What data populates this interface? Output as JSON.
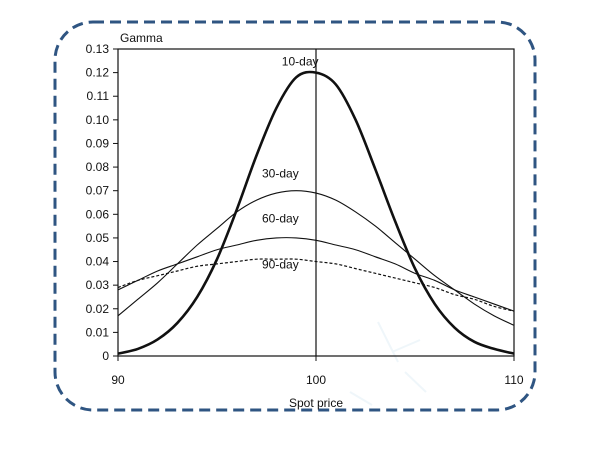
{
  "colors": {
    "border": "#2f5582",
    "line": "#111111",
    "background": "#ffffff"
  },
  "chart_data": {
    "type": "line",
    "title": "",
    "xlabel": "Spot price",
    "ylabel": "Gamma",
    "xlim": [
      90,
      110
    ],
    "ylim": [
      0,
      0.13
    ],
    "x_ticks": [
      "90",
      "100",
      "110"
    ],
    "y_ticks": [
      "0",
      "0.01",
      "0.02",
      "0.03",
      "0.04",
      "0.05",
      "0.06",
      "0.07",
      "0.08",
      "0.09",
      "0.10",
      "0.11",
      "0.12",
      "0.13"
    ],
    "vertical_reference": 100,
    "grid": false,
    "legend": "inline labels",
    "series": [
      {
        "name": "10-day",
        "style": "solid-thick",
        "x": [
          90,
          91,
          92,
          93,
          94,
          95,
          96,
          97,
          98,
          99,
          100,
          101,
          102,
          103,
          104,
          105,
          106,
          107,
          108,
          109,
          110
        ],
        "values": [
          0.001,
          0.003,
          0.007,
          0.014,
          0.025,
          0.041,
          0.062,
          0.085,
          0.105,
          0.118,
          0.12,
          0.115,
          0.1,
          0.079,
          0.057,
          0.037,
          0.022,
          0.012,
          0.006,
          0.003,
          0.001
        ]
      },
      {
        "name": "30-day",
        "style": "solid-thin",
        "x": [
          90,
          91,
          92,
          93,
          94,
          95,
          96,
          97,
          98,
          99,
          100,
          101,
          102,
          103,
          104,
          105,
          106,
          107,
          108,
          109,
          110
        ],
        "values": [
          0.017,
          0.024,
          0.031,
          0.039,
          0.047,
          0.054,
          0.061,
          0.066,
          0.069,
          0.07,
          0.069,
          0.066,
          0.061,
          0.055,
          0.048,
          0.041,
          0.034,
          0.028,
          0.022,
          0.017,
          0.013
        ]
      },
      {
        "name": "60-day",
        "style": "solid-thin",
        "x": [
          90,
          91,
          92,
          93,
          94,
          95,
          96,
          97,
          98,
          99,
          100,
          101,
          102,
          103,
          104,
          105,
          106,
          107,
          108,
          109,
          110
        ],
        "values": [
          0.028,
          0.032,
          0.036,
          0.039,
          0.042,
          0.045,
          0.047,
          0.049,
          0.05,
          0.05,
          0.049,
          0.047,
          0.045,
          0.042,
          0.039,
          0.035,
          0.032,
          0.028,
          0.025,
          0.022,
          0.019
        ]
      },
      {
        "name": "90-day",
        "style": "dashed",
        "x": [
          90,
          91,
          92,
          93,
          94,
          95,
          96,
          97,
          98,
          99,
          100,
          101,
          102,
          103,
          104,
          105,
          106,
          107,
          108,
          109,
          110
        ],
        "values": [
          0.029,
          0.032,
          0.034,
          0.036,
          0.038,
          0.039,
          0.04,
          0.041,
          0.041,
          0.041,
          0.04,
          0.039,
          0.037,
          0.035,
          0.033,
          0.031,
          0.029,
          0.026,
          0.024,
          0.021,
          0.019
        ]
      }
    ],
    "series_label_anchors": [
      {
        "name": "10-day",
        "x": 99.2,
        "y": 0.123
      },
      {
        "name": "30-day",
        "x": 98.2,
        "y": 0.0755
      },
      {
        "name": "60-day",
        "x": 98.2,
        "y": 0.0565
      },
      {
        "name": "90-day",
        "x": 98.2,
        "y": 0.037
      }
    ]
  }
}
